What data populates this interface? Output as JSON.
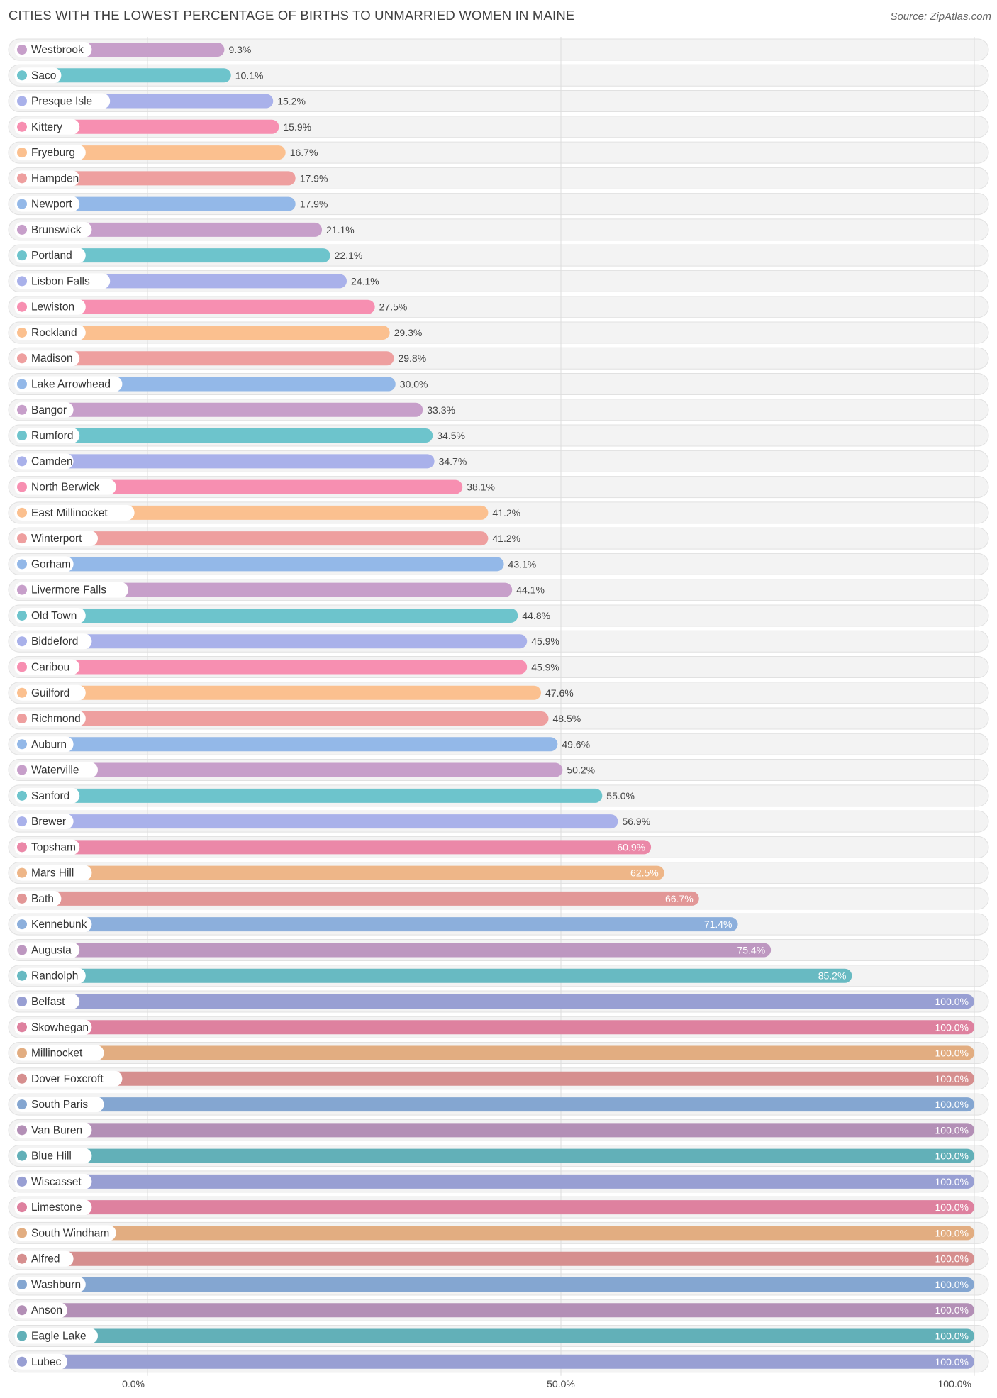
{
  "title": "CITIES WITH THE LOWEST PERCENTAGE OF BIRTHS TO UNMARRIED WOMEN IN MAINE",
  "source": "Source: ZipAtlas.com",
  "colors": {
    "palette": [
      "#c79fca",
      "#6dc4cc",
      "#a9b1ea",
      "#f78fb1",
      "#fbc08f",
      "#ee9f9f",
      "#93b8e8"
    ],
    "row_bg": "#f3f3f3",
    "row_border": "#e1e1e1",
    "grid": "#dddddd"
  },
  "chart_data": {
    "type": "bar",
    "orientation": "horizontal",
    "title": "CITIES WITH THE LOWEST PERCENTAGE OF BIRTHS TO UNMARRIED WOMEN IN MAINE",
    "xlabel": "",
    "ylabel": "",
    "xlim": [
      0,
      100
    ],
    "ticks": [
      0,
      50,
      100
    ],
    "tick_labels": [
      "0.0%",
      "50.0%",
      "100.0%"
    ],
    "grid": true,
    "categories": [
      "Westbrook",
      "Saco",
      "Presque Isle",
      "Kittery",
      "Fryeburg",
      "Hampden",
      "Newport",
      "Brunswick",
      "Portland",
      "Lisbon Falls",
      "Lewiston",
      "Rockland",
      "Madison",
      "Lake Arrowhead",
      "Bangor",
      "Rumford",
      "Camden",
      "North Berwick",
      "East Millinocket",
      "Winterport",
      "Gorham",
      "Livermore Falls",
      "Old Town",
      "Biddeford",
      "Caribou",
      "Guilford",
      "Richmond",
      "Auburn",
      "Waterville",
      "Sanford",
      "Brewer",
      "Topsham",
      "Mars Hill",
      "Bath",
      "Kennebunk",
      "Augusta",
      "Randolph",
      "Belfast",
      "Skowhegan",
      "Millinocket",
      "Dover Foxcroft",
      "South Paris",
      "Van Buren",
      "Blue Hill",
      "Wiscasset",
      "Limestone",
      "South Windham",
      "Alfred",
      "Washburn",
      "Anson",
      "Eagle Lake",
      "Lubec"
    ],
    "values": [
      9.3,
      10.1,
      15.2,
      15.9,
      16.7,
      17.9,
      17.9,
      21.1,
      22.1,
      24.1,
      27.5,
      29.3,
      29.8,
      30.0,
      33.3,
      34.5,
      34.7,
      38.1,
      41.2,
      41.2,
      43.1,
      44.1,
      44.8,
      45.9,
      45.9,
      47.6,
      48.5,
      49.6,
      50.2,
      55.0,
      56.9,
      60.9,
      62.5,
      66.7,
      71.4,
      75.4,
      85.2,
      100.0,
      100.0,
      100.0,
      100.0,
      100.0,
      100.0,
      100.0,
      100.0,
      100.0,
      100.0,
      100.0,
      100.0,
      100.0,
      100.0,
      100.0
    ],
    "value_labels": [
      "9.3%",
      "10.1%",
      "15.2%",
      "15.9%",
      "16.7%",
      "17.9%",
      "17.9%",
      "21.1%",
      "22.1%",
      "24.1%",
      "27.5%",
      "29.3%",
      "29.8%",
      "30.0%",
      "33.3%",
      "34.5%",
      "34.7%",
      "38.1%",
      "41.2%",
      "41.2%",
      "43.1%",
      "44.1%",
      "44.8%",
      "45.9%",
      "45.9%",
      "47.6%",
      "48.5%",
      "49.6%",
      "50.2%",
      "55.0%",
      "56.9%",
      "60.9%",
      "62.5%",
      "66.7%",
      "71.4%",
      "75.4%",
      "85.2%",
      "100.0%",
      "100.0%",
      "100.0%",
      "100.0%",
      "100.0%",
      "100.0%",
      "100.0%",
      "100.0%",
      "100.0%",
      "100.0%",
      "100.0%",
      "100.0%",
      "100.0%",
      "100.0%",
      "100.0%"
    ]
  }
}
